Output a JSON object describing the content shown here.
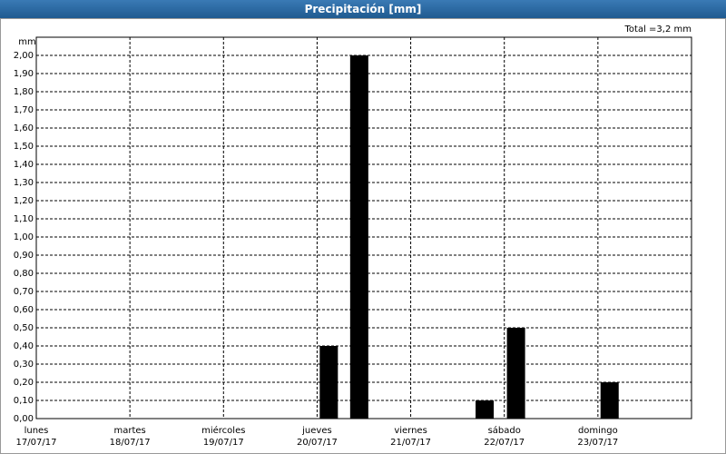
{
  "chart_data": {
    "type": "bar",
    "title": "Precipitación [mm]",
    "y_label": "mm",
    "annotation": "Total =3,2 mm",
    "x": [
      3.125,
      3.45,
      4.79,
      5.125,
      6.125
    ],
    "series": [
      {
        "name": "Precipitación",
        "color": "#000000",
        "values": [
          0.4,
          2.0,
          0.1,
          0.5,
          0.2
        ]
      }
    ],
    "xlim": [
      0,
      7
    ],
    "xticks": [
      {
        "value": 0,
        "label": "lunes\n17/07/17"
      },
      {
        "value": 1,
        "label": "martes\n18/07/17"
      },
      {
        "value": 2,
        "label": "miércoles\n19/07/17"
      },
      {
        "value": 3,
        "label": "jueves\n20/07/17"
      },
      {
        "value": 4,
        "label": "viernes\n21/07/17"
      },
      {
        "value": 5,
        "label": "sábado\n22/07/17"
      },
      {
        "value": 6,
        "label": "domingo\n23/07/17"
      }
    ],
    "ylim": [
      0,
      2.1
    ],
    "yticks": [
      {
        "value": 0,
        "label": "0,00"
      },
      {
        "value": 0.1,
        "label": "0,10"
      },
      {
        "value": 0.2,
        "label": "0,20"
      },
      {
        "value": 0.3,
        "label": "0,30"
      },
      {
        "value": 0.4,
        "label": "0,40"
      },
      {
        "value": 0.5,
        "label": "0,50"
      },
      {
        "value": 0.6,
        "label": "0,60"
      },
      {
        "value": 0.7,
        "label": "0,70"
      },
      {
        "value": 0.8,
        "label": "0,80"
      },
      {
        "value": 0.9,
        "label": "0,90"
      },
      {
        "value": 1.0,
        "label": "1,00"
      },
      {
        "value": 1.1,
        "label": "1,10"
      },
      {
        "value": 1.2,
        "label": "1,20"
      },
      {
        "value": 1.3,
        "label": "1,30"
      },
      {
        "value": 1.4,
        "label": "1,40"
      },
      {
        "value": 1.5,
        "label": "1,50"
      },
      {
        "value": 1.6,
        "label": "1,60"
      },
      {
        "value": 1.7,
        "label": "1,70"
      },
      {
        "value": 1.8,
        "label": "1,80"
      },
      {
        "value": 1.9,
        "label": "1,90"
      },
      {
        "value": 2.0,
        "label": "2,00"
      }
    ],
    "grid": true
  }
}
